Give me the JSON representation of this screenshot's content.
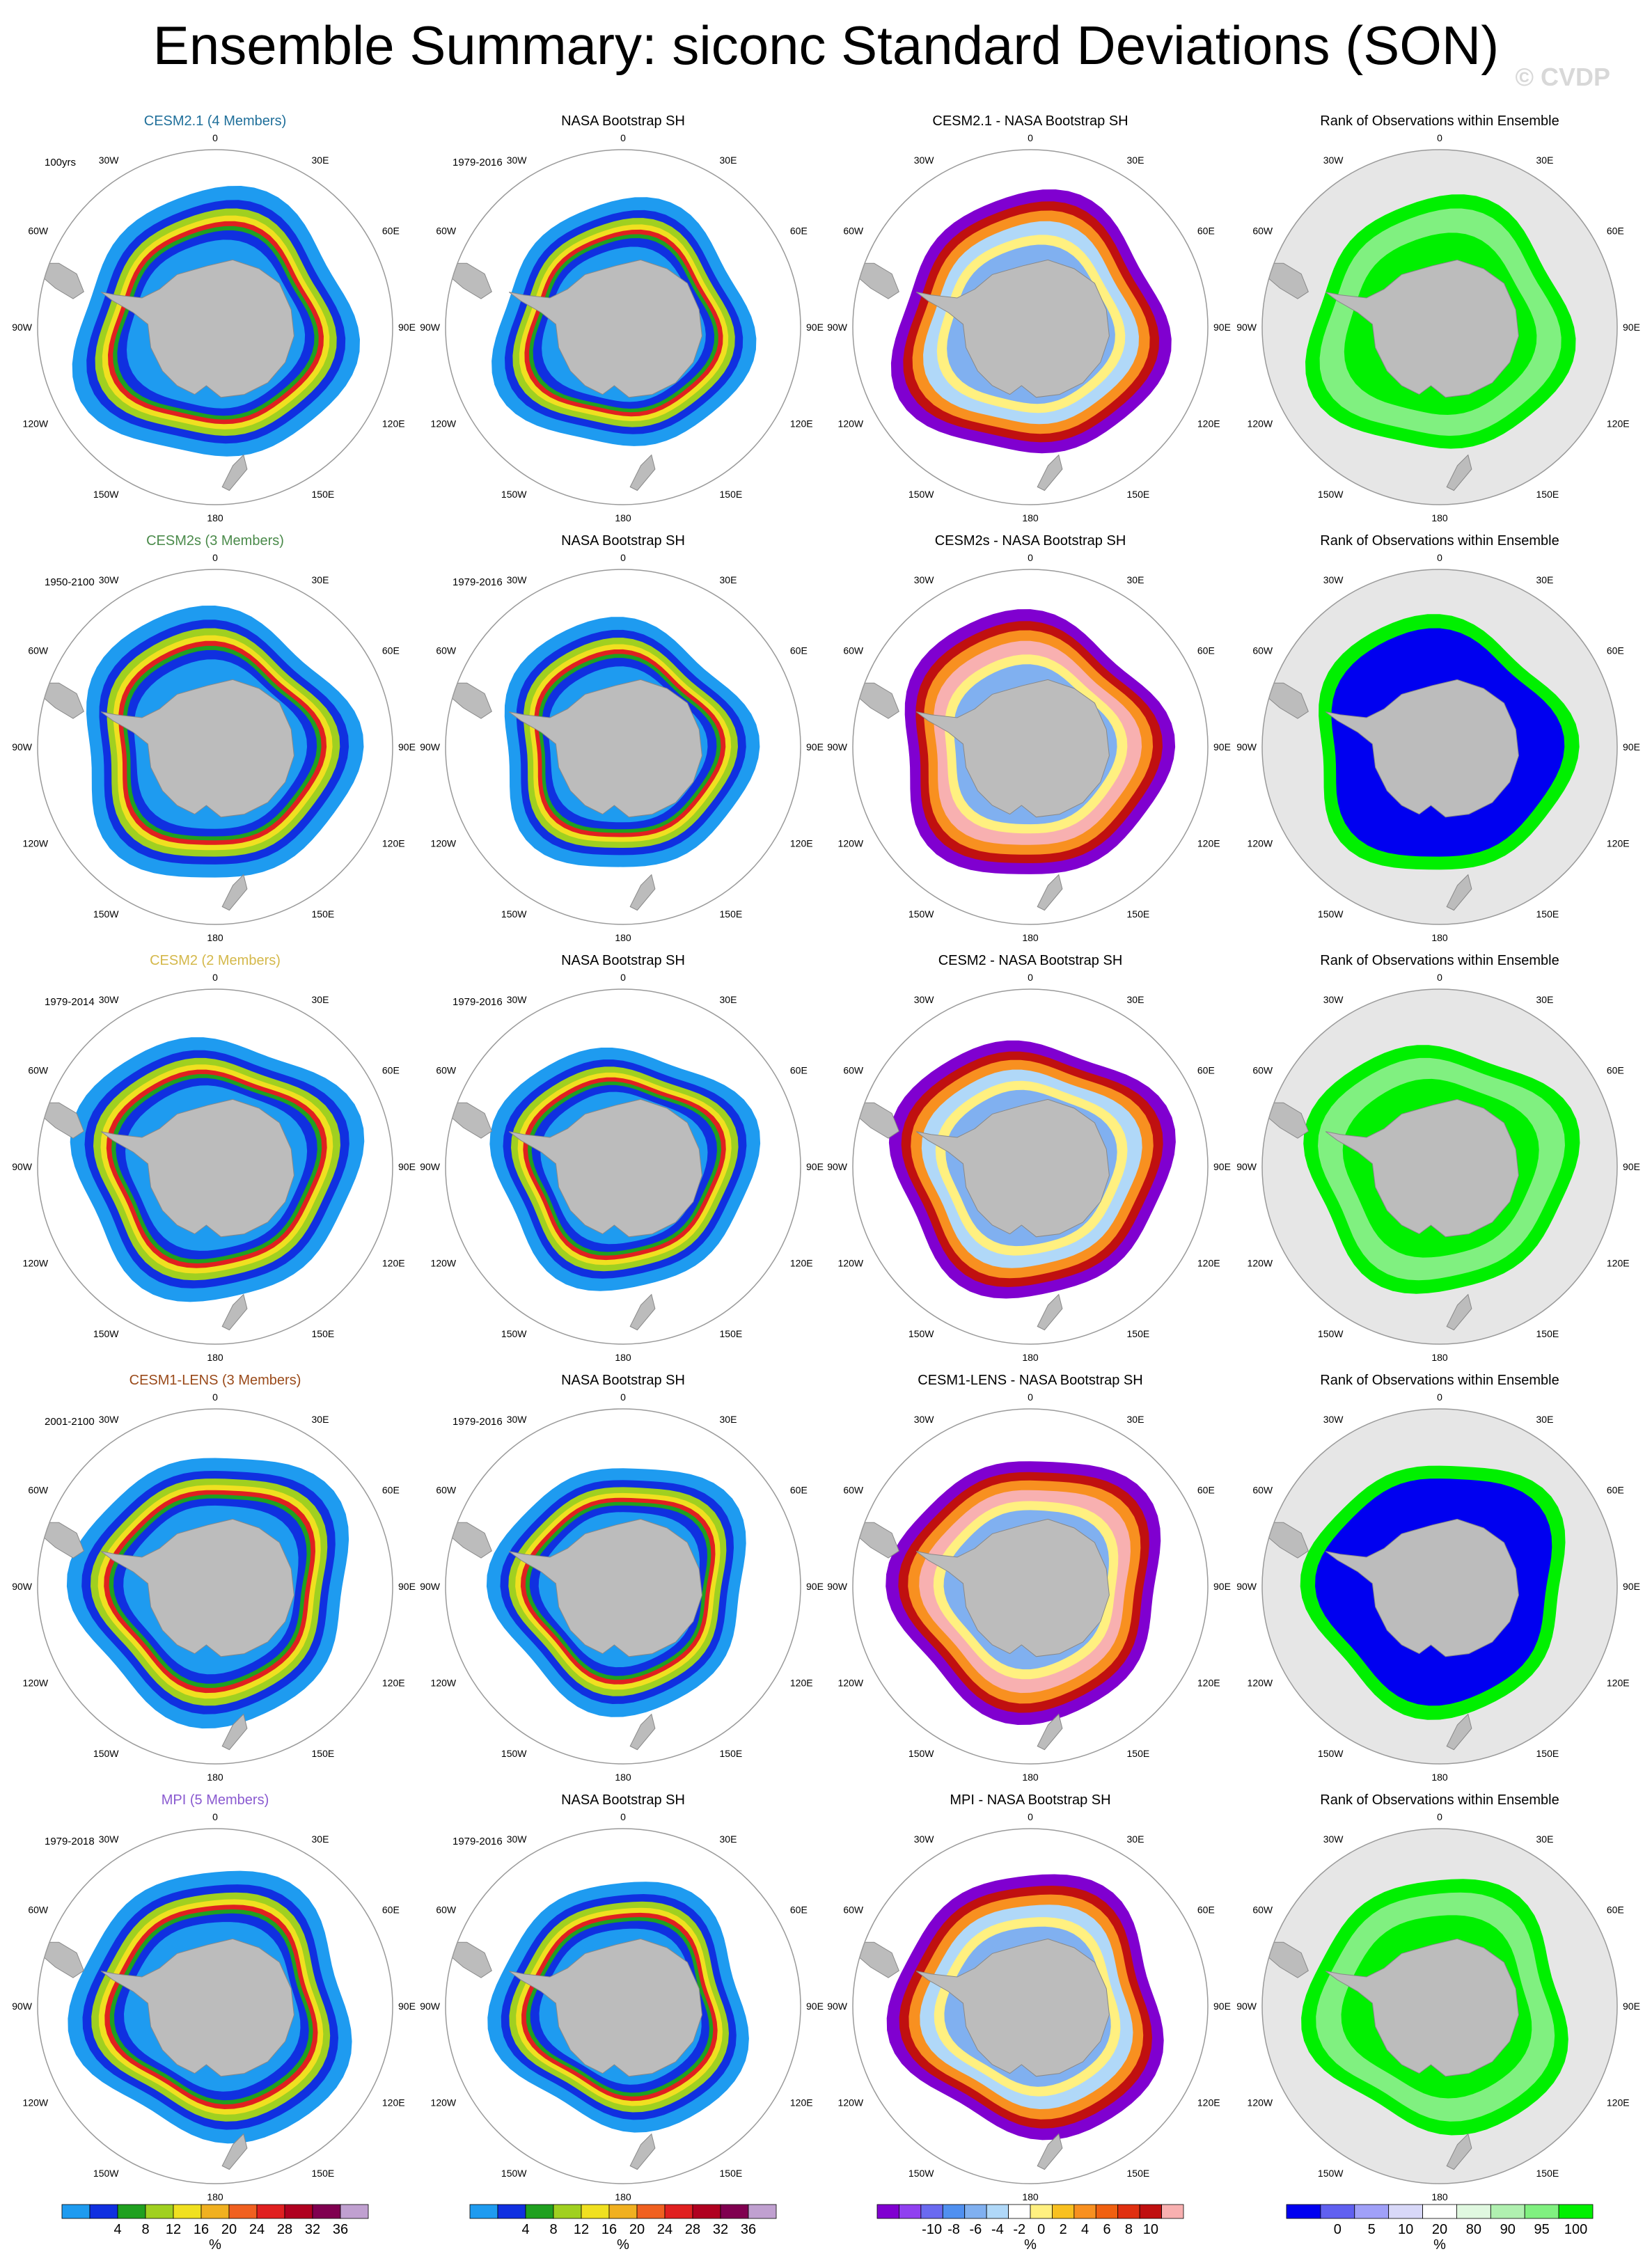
{
  "title": "Ensemble Summary: siconc Standard Deviations (SON)",
  "watermark": "© CVDP",
  "colors": {
    "land": "#bcbcbc",
    "rank_background": "#e6e6e6",
    "circle": "#9a9a9a"
  },
  "chart_data": {
    "type": "heatmap",
    "map_labels": {
      "top": "0",
      "bottom": "180",
      "left": "90W",
      "right": "90E",
      "ring": [
        "30W",
        "30E",
        "60W",
        "60E",
        "120W",
        "120E",
        "150W",
        "150E"
      ]
    },
    "rows": [
      {
        "model": "CESM2.1 (4 Members)",
        "model_color": "#1f6f9a",
        "period": "100yrs",
        "obs_title": "NASA Bootstrap SH",
        "obs_period": "1979-2016",
        "diff_title": "CESM2.1 - NASA Bootstrap SH",
        "rank_title": "Rank of Observations within Ensemble"
      },
      {
        "model": "CESM2s (3 Members)",
        "model_color": "#4a8a4a",
        "period": "1950-2100",
        "obs_title": "NASA Bootstrap SH",
        "obs_period": "1979-2016",
        "diff_title": "CESM2s - NASA Bootstrap SH",
        "rank_title": "Rank of Observations within Ensemble"
      },
      {
        "model": "CESM2 (2 Members)",
        "model_color": "#d4b84a",
        "period": "1979-2014",
        "obs_title": "NASA Bootstrap SH",
        "obs_period": "1979-2016",
        "diff_title": "CESM2 - NASA Bootstrap SH",
        "rank_title": "Rank of Observations within Ensemble"
      },
      {
        "model": "CESM1-LENS (3 Members)",
        "model_color": "#9a4a1a",
        "period": "2001-2100",
        "obs_title": "NASA Bootstrap SH",
        "obs_period": "1979-2016",
        "diff_title": "CESM1-LENS - NASA Bootstrap SH",
        "rank_title": "Rank of Observations within Ensemble"
      },
      {
        "model": "MPI (5 Members)",
        "model_color": "#8a5ad0",
        "period": "1979-2018",
        "obs_title": "NASA Bootstrap SH",
        "obs_period": "1979-2016",
        "diff_title": "MPI - NASA Bootstrap SH",
        "rank_title": "Rank of Observations within Ensemble"
      }
    ],
    "colorbars": [
      {
        "unit": "%",
        "labels": [
          "4",
          "8",
          "12",
          "16",
          "20",
          "24",
          "28",
          "32",
          "36"
        ],
        "colors": [
          "#1e9bf0",
          "#1030e0",
          "#20a020",
          "#a0d020",
          "#f0e020",
          "#f0b020",
          "#f06020",
          "#e02020",
          "#b00020",
          "#800050",
          "#c0a0d0"
        ]
      },
      {
        "unit": "%",
        "labels": [
          "4",
          "8",
          "12",
          "16",
          "20",
          "24",
          "28",
          "32",
          "36"
        ],
        "colors": [
          "#1e9bf0",
          "#1030e0",
          "#20a020",
          "#a0d020",
          "#f0e020",
          "#f0b020",
          "#f06020",
          "#e02020",
          "#b00020",
          "#800050",
          "#c0a0d0"
        ]
      },
      {
        "unit": "%",
        "labels": [
          "-10",
          "-8",
          "-6",
          "-4",
          "-2",
          "0",
          "2",
          "4",
          "6",
          "8",
          "10"
        ],
        "colors": [
          "#8000d0",
          "#9040f0",
          "#6a6af0",
          "#5090f0",
          "#80b0f0",
          "#b0d8f8",
          "#ffffff",
          "#fff080",
          "#f8c020",
          "#f89020",
          "#f06010",
          "#e03010",
          "#c01010",
          "#f8b0b0"
        ]
      },
      {
        "unit": "%",
        "labels": [
          "0",
          "5",
          "10",
          "20",
          "80",
          "90",
          "95",
          "100"
        ],
        "colors": [
          "#0000f0",
          "#6060f0",
          "#a0a0f8",
          "#d8d8f8",
          "#ffffff",
          "#e0f8e0",
          "#b0f0b0",
          "#80f080",
          "#00f000"
        ]
      }
    ]
  }
}
